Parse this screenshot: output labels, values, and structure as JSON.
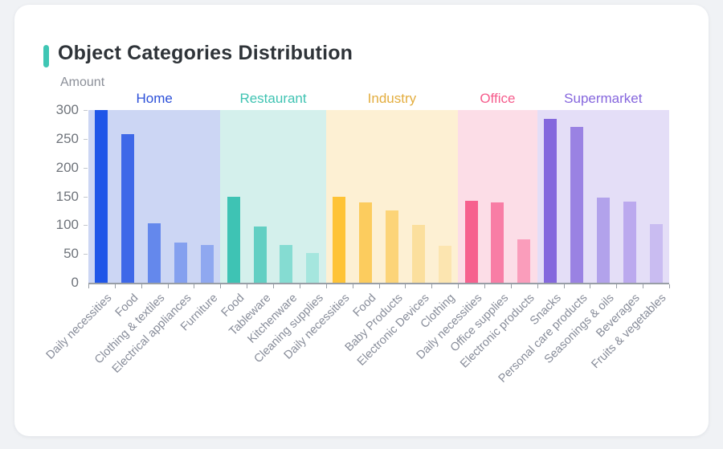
{
  "header": {
    "title": "Object Categories Distribution",
    "accent_color": "#3fc6b4"
  },
  "theme": {
    "page_background": "#f0f2f5",
    "card_background": "#ffffff",
    "axis_color": "#989ea6",
    "tick_label_color": "#6f747b",
    "x_label_color": "#878c99"
  },
  "chart_data": {
    "type": "bar",
    "title": "Object Categories Distribution",
    "xlabel": "",
    "ylabel": "Amount",
    "ylim": [
      0,
      300
    ],
    "y_ticks": [
      0,
      50,
      100,
      150,
      200,
      250,
      300
    ],
    "grid": false,
    "legend_position": "group labels inline above panels",
    "x_label_rotation_deg": -45,
    "groups": [
      {
        "name": "Home",
        "label_color": "#2b4fd8",
        "panel_color": "#ccd6f4",
        "bar_colors": [
          "#1f56e8",
          "#3e68e8",
          "#6488ec",
          "#84a0ef",
          "#8fa8f0"
        ],
        "items": [
          {
            "label": "Daily necessities",
            "value": 300
          },
          {
            "label": "Food",
            "value": 258
          },
          {
            "label": "Clothing & textiles",
            "value": 103
          },
          {
            "label": "Electrical appliances",
            "value": 70
          },
          {
            "label": "Furniture",
            "value": 65
          }
        ]
      },
      {
        "name": "Restaurant",
        "label_color": "#3fc3b2",
        "panel_color": "#d4f0ec",
        "bar_colors": [
          "#3ec3b4",
          "#62cfc3",
          "#85dcd2",
          "#a5e6de"
        ],
        "items": [
          {
            "label": "Food",
            "value": 149
          },
          {
            "label": "Tableware",
            "value": 98
          },
          {
            "label": "Kitchenware",
            "value": 66
          },
          {
            "label": "Cleaning supplies",
            "value": 51
          }
        ]
      },
      {
        "name": "Industry",
        "label_color": "#e3ad3e",
        "panel_color": "#fdf0d3",
        "bar_colors": [
          "#fec336",
          "#fccc5e",
          "#fcd478",
          "#fbdf9d",
          "#fce5b0"
        ],
        "items": [
          {
            "label": "Daily necessities",
            "value": 150
          },
          {
            "label": "Food",
            "value": 139
          },
          {
            "label": "Baby Products",
            "value": 126
          },
          {
            "label": "Electronic Devices",
            "value": 100
          },
          {
            "label": "Clothing",
            "value": 64
          }
        ]
      },
      {
        "name": "Office",
        "label_color": "#f55c8c",
        "panel_color": "#fcdde7",
        "bar_colors": [
          "#f6618e",
          "#f87da5",
          "#fa9dbb"
        ],
        "items": [
          {
            "label": "Daily necessities",
            "value": 142
          },
          {
            "label": "Office supplies",
            "value": 139
          },
          {
            "label": "Electronic products",
            "value": 76
          }
        ]
      },
      {
        "name": "Supermarket",
        "label_color": "#8566dd",
        "panel_color": "#e4def7",
        "bar_colors": [
          "#8468dd",
          "#9a82e3",
          "#b2a2eb",
          "#bba9ee",
          "#c9bcf1"
        ],
        "items": [
          {
            "label": "Snacks",
            "value": 285
          },
          {
            "label": "Personal care products",
            "value": 271
          },
          {
            "label": "Seasonings & oils",
            "value": 148
          },
          {
            "label": "Beverages",
            "value": 141
          },
          {
            "label": "Fruits & vegetables",
            "value": 102
          }
        ]
      }
    ]
  }
}
